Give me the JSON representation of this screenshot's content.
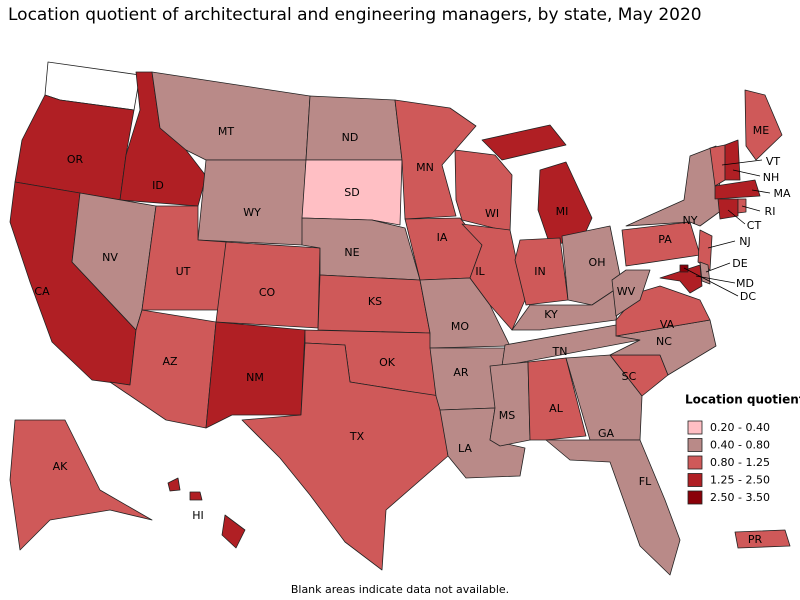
{
  "title": "Location quotient of architectural and engineering managers, by state, May 2020",
  "legend": {
    "title": "Location quotient",
    "items": [
      {
        "label": "0.20 - 0.40",
        "color": "#ffbfc4"
      },
      {
        "label": "0.40 - 0.80",
        "color": "#b98a88"
      },
      {
        "label": "0.80 - 1.25",
        "color": "#cf5959"
      },
      {
        "label": "1.25 - 2.50",
        "color": "#b01f24"
      },
      {
        "label": "2.50 - 3.50",
        "color": "#8a0009"
      }
    ]
  },
  "states": [
    {
      "abbr": "WA",
      "range": null
    },
    {
      "abbr": "OR",
      "range": "1.25 - 2.50"
    },
    {
      "abbr": "CA",
      "range": "1.25 - 2.50"
    },
    {
      "abbr": "ID",
      "range": "1.25 - 2.50"
    },
    {
      "abbr": "NV",
      "range": "0.40 - 0.80"
    },
    {
      "abbr": "MT",
      "range": "0.40 - 0.80"
    },
    {
      "abbr": "WY",
      "range": "0.40 - 0.80"
    },
    {
      "abbr": "UT",
      "range": "0.80 - 1.25"
    },
    {
      "abbr": "CO",
      "range": "0.80 - 1.25"
    },
    {
      "abbr": "AZ",
      "range": "0.80 - 1.25"
    },
    {
      "abbr": "NM",
      "range": "1.25 - 2.50"
    },
    {
      "abbr": "ND",
      "range": "0.40 - 0.80"
    },
    {
      "abbr": "SD",
      "range": "0.20 - 0.40"
    },
    {
      "abbr": "NE",
      "range": "0.40 - 0.80"
    },
    {
      "abbr": "KS",
      "range": "0.80 - 1.25"
    },
    {
      "abbr": "OK",
      "range": "0.80 - 1.25"
    },
    {
      "abbr": "TX",
      "range": "0.80 - 1.25"
    },
    {
      "abbr": "MN",
      "range": "0.80 - 1.25"
    },
    {
      "abbr": "IA",
      "range": "0.80 - 1.25"
    },
    {
      "abbr": "MO",
      "range": "0.40 - 0.80"
    },
    {
      "abbr": "AR",
      "range": "0.40 - 0.80"
    },
    {
      "abbr": "LA",
      "range": "0.40 - 0.80"
    },
    {
      "abbr": "WI",
      "range": "0.80 - 1.25"
    },
    {
      "abbr": "IL",
      "range": "0.80 - 1.25"
    },
    {
      "abbr": "MI",
      "range": "1.25 - 2.50"
    },
    {
      "abbr": "IN",
      "range": "0.80 - 1.25"
    },
    {
      "abbr": "OH",
      "range": "0.40 - 0.80"
    },
    {
      "abbr": "KY",
      "range": "0.40 - 0.80"
    },
    {
      "abbr": "TN",
      "range": "0.40 - 0.80"
    },
    {
      "abbr": "MS",
      "range": "0.40 - 0.80"
    },
    {
      "abbr": "AL",
      "range": "0.80 - 1.25"
    },
    {
      "abbr": "GA",
      "range": "0.40 - 0.80"
    },
    {
      "abbr": "FL",
      "range": "0.40 - 0.80"
    },
    {
      "abbr": "SC",
      "range": "0.80 - 1.25"
    },
    {
      "abbr": "NC",
      "range": "0.40 - 0.80"
    },
    {
      "abbr": "VA",
      "range": "0.80 - 1.25"
    },
    {
      "abbr": "WV",
      "range": "0.40 - 0.80"
    },
    {
      "abbr": "PA",
      "range": "0.80 - 1.25"
    },
    {
      "abbr": "NY",
      "range": "0.40 - 0.80"
    },
    {
      "abbr": "ME",
      "range": "0.80 - 1.25"
    },
    {
      "abbr": "VT",
      "range": "0.80 - 1.25"
    },
    {
      "abbr": "NH",
      "range": "1.25 - 2.50"
    },
    {
      "abbr": "MA",
      "range": "1.25 - 2.50"
    },
    {
      "abbr": "CT",
      "range": "1.25 - 2.50"
    },
    {
      "abbr": "RI",
      "range": "0.80 - 1.25"
    },
    {
      "abbr": "NJ",
      "range": "0.80 - 1.25"
    },
    {
      "abbr": "DE",
      "range": "0.40 - 0.80"
    },
    {
      "abbr": "MD",
      "range": "1.25 - 2.50"
    },
    {
      "abbr": "DC",
      "range": "2.50 - 3.50"
    },
    {
      "abbr": "AK",
      "range": "0.80 - 1.25"
    },
    {
      "abbr": "HI",
      "range": "1.25 - 2.50"
    },
    {
      "abbr": "PR",
      "range": "0.80 - 1.25"
    }
  ],
  "footnote": "Blank areas indicate data not available."
}
